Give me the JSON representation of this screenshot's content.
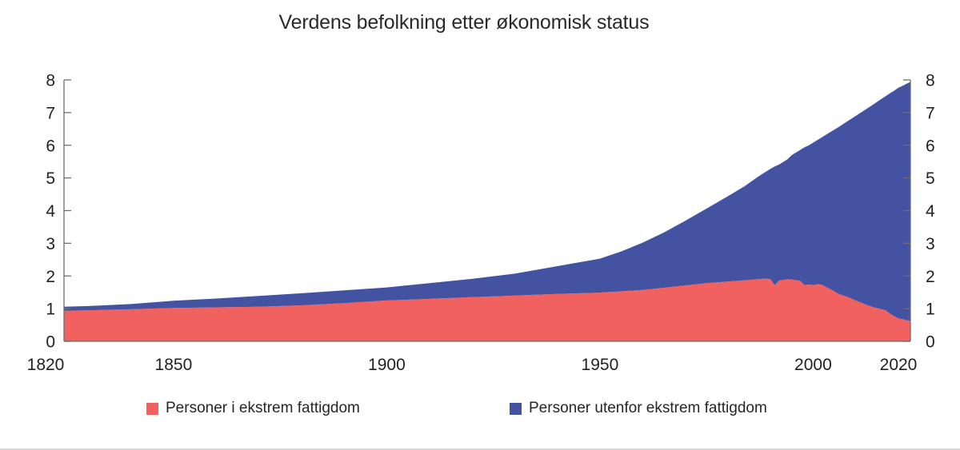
{
  "chart_data": {
    "type": "area",
    "stacked": true,
    "title": "Verdens befolkning etter økonomisk status",
    "xlabel": "",
    "ylabel": "",
    "ylim": [
      0,
      8
    ],
    "y_ticks": [
      0,
      1,
      2,
      3,
      4,
      5,
      6,
      7,
      8
    ],
    "y_axis_sides": "both",
    "x_ticks": [
      1820,
      1850,
      1900,
      1950,
      2000,
      2020
    ],
    "grid": false,
    "legend_position": "bottom",
    "axis_color": "#6e6e6e",
    "text_color": "#222222",
    "x": [
      1820,
      1830,
      1840,
      1850,
      1860,
      1870,
      1880,
      1890,
      1900,
      1910,
      1920,
      1930,
      1940,
      1950,
      1955,
      1960,
      1965,
      1970,
      1975,
      1980,
      1984,
      1987,
      1989,
      1990,
      1991,
      1992,
      1994,
      1995,
      1997,
      1998,
      1999,
      2000,
      2001,
      2002,
      2004,
      2006,
      2008,
      2010,
      2012,
      2014,
      2016,
      2017,
      2018,
      2019,
      2020,
      2021,
      2022,
      2023
    ],
    "series": [
      {
        "name": "Personer i ekstrem fattigdom",
        "color": "#F0615F",
        "values": [
          0.93,
          0.95,
          0.98,
          1.02,
          1.04,
          1.06,
          1.1,
          1.17,
          1.25,
          1.3,
          1.35,
          1.4,
          1.45,
          1.49,
          1.53,
          1.57,
          1.64,
          1.71,
          1.78,
          1.83,
          1.87,
          1.9,
          1.92,
          1.9,
          1.72,
          1.86,
          1.9,
          1.89,
          1.85,
          1.72,
          1.74,
          1.72,
          1.75,
          1.73,
          1.6,
          1.45,
          1.36,
          1.25,
          1.14,
          1.05,
          0.98,
          0.95,
          0.85,
          0.77,
          0.7,
          0.68,
          0.64,
          0.62
        ]
      },
      {
        "name": "Personer utenfor ekstrem fattigdom",
        "color": "#4353A2",
        "values": [
          0.11,
          0.13,
          0.16,
          0.22,
          0.27,
          0.33,
          0.37,
          0.39,
          0.4,
          0.48,
          0.56,
          0.67,
          0.85,
          1.04,
          1.22,
          1.45,
          1.69,
          1.98,
          2.28,
          2.61,
          2.88,
          3.13,
          3.28,
          3.38,
          3.63,
          3.55,
          3.67,
          3.81,
          4.01,
          4.22,
          4.26,
          4.36,
          4.41,
          4.51,
          4.8,
          5.11,
          5.37,
          5.65,
          5.93,
          6.19,
          6.44,
          6.55,
          6.74,
          6.9,
          7.06,
          7.14,
          7.25,
          7.33
        ]
      }
    ]
  }
}
